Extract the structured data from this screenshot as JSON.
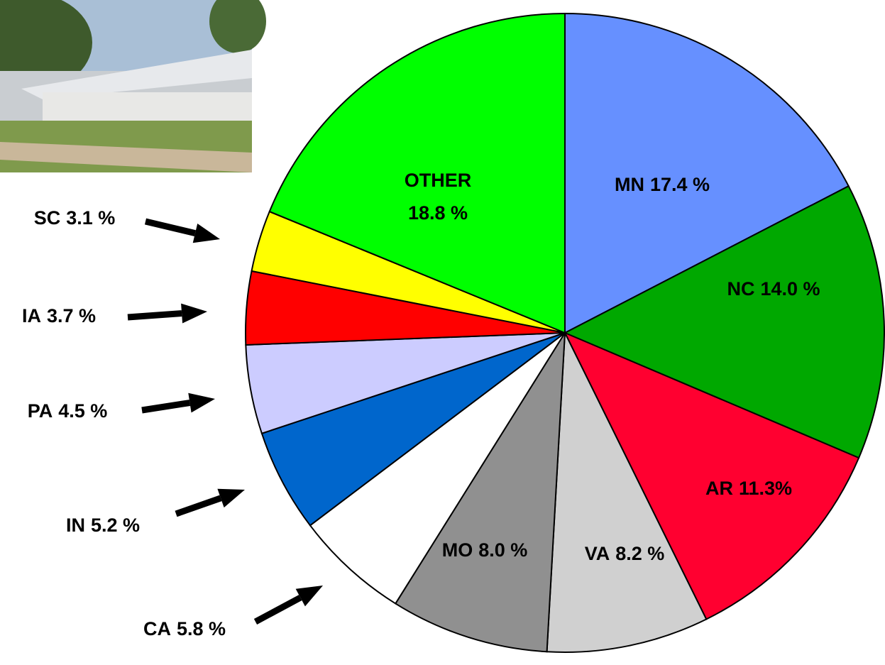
{
  "chart_data": {
    "type": "pie",
    "categories": [
      "MN",
      "NC",
      "AR",
      "VA",
      "MO",
      "CA",
      "IN",
      "PA",
      "IA",
      "SC",
      "OTHER"
    ],
    "values": [
      17.4,
      14.0,
      11.3,
      8.2,
      8.0,
      5.8,
      5.2,
      4.5,
      3.7,
      3.1,
      18.8
    ],
    "value_labels": [
      "17.4 %",
      "14.0 %",
      "11.3%",
      "8.2 %",
      "8.0 %",
      "5.8 %",
      "5.2 %",
      "4.5 %",
      "3.7 %",
      "3.1 %",
      "18.8 %"
    ],
    "colors": [
      "#6690ff",
      "#00a800",
      "#ff0030",
      "#d0d0d0",
      "#909090",
      "#ffffff",
      "#0066cc",
      "#ccccff",
      "#ff0000",
      "#ffff00",
      "#00ff00"
    ]
  }
}
